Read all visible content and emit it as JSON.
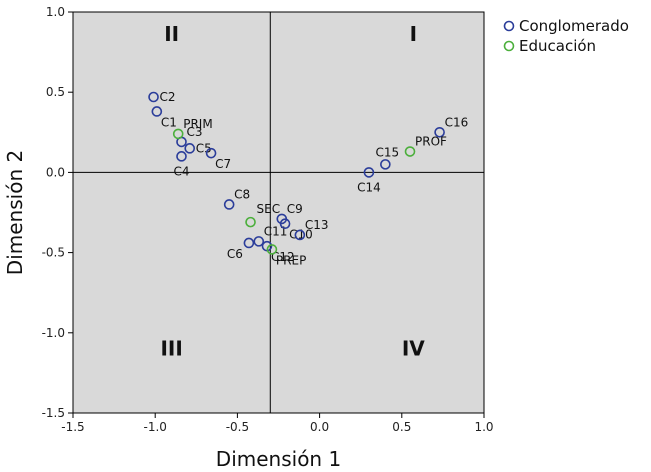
{
  "chart_data": {
    "type": "scatter",
    "xlabel": "Dimensión 1",
    "ylabel": "Dimensión 2",
    "xlim": [
      -1.5,
      1.0
    ],
    "ylim": [
      -1.5,
      1.0
    ],
    "xticks": [
      {
        "value": -1.5,
        "label": "-1.5"
      },
      {
        "value": -1.0,
        "label": "-1.0"
      },
      {
        "value": -0.5,
        "label": "-0.5"
      },
      {
        "value": 0.0,
        "label": "0.0"
      },
      {
        "value": 0.5,
        "label": "0.5"
      },
      {
        "value": 1.0,
        "label": "1.0"
      }
    ],
    "yticks": [
      {
        "value": 1.0,
        "label": "1.0"
      },
      {
        "value": 0.5,
        "label": "0.5"
      },
      {
        "value": 0.0,
        "label": "0.0"
      },
      {
        "value": -0.5,
        "label": "-0.5"
      },
      {
        "value": -1.0,
        "label": "-1.0"
      },
      {
        "value": -1.5,
        "label": "-1.5"
      }
    ],
    "reference_lines": {
      "x": -0.3,
      "y": 0.0
    },
    "quadrants": [
      {
        "label": "I",
        "x": 0.57,
        "y": 0.82
      },
      {
        "label": "II",
        "x": -0.9,
        "y": 0.82
      },
      {
        "label": "III",
        "x": -0.9,
        "y": -1.14
      },
      {
        "label": "IV",
        "x": 0.57,
        "y": -1.14
      }
    ],
    "colors": {
      "Conglomerado": "#2b3d9a",
      "Educación": "#4caf3c"
    },
    "series": [
      {
        "name": "Conglomerado",
        "points": [
          {
            "label": "C2",
            "x": -1.01,
            "y": 0.47,
            "anchor": "right"
          },
          {
            "label": "C1",
            "x": -0.99,
            "y": 0.38,
            "anchor": "below-right"
          },
          {
            "label": "C3",
            "x": -0.84,
            "y": 0.19,
            "anchor": "above-right"
          },
          {
            "label": "C5",
            "x": -0.79,
            "y": 0.15,
            "anchor": "right"
          },
          {
            "label": "C4",
            "x": -0.84,
            "y": 0.1,
            "anchor": "below"
          },
          {
            "label": "C7",
            "x": -0.66,
            "y": 0.12,
            "anchor": "below-right"
          },
          {
            "label": "C8",
            "x": -0.55,
            "y": -0.2,
            "anchor": "above-right"
          },
          {
            "label": "C6",
            "x": -0.43,
            "y": -0.44,
            "anchor": "below-left"
          },
          {
            "label": "C11",
            "x": -0.37,
            "y": -0.43,
            "anchor": "above-right"
          },
          {
            "label": "C12",
            "x": -0.32,
            "y": -0.46,
            "anchor": "below-right"
          },
          {
            "label": "C9",
            "x": -0.23,
            "y": -0.29,
            "anchor": "above-right"
          },
          {
            "label": "C10",
            "x": -0.21,
            "y": -0.32,
            "anchor": "below-right"
          },
          {
            "label": "C13",
            "x": -0.12,
            "y": -0.39,
            "anchor": "above-right"
          },
          {
            "label": "C14",
            "x": 0.3,
            "y": 0.0,
            "anchor": "below"
          },
          {
            "label": "C15",
            "x": 0.4,
            "y": 0.05,
            "anchor": "above"
          },
          {
            "label": "C16",
            "x": 0.73,
            "y": 0.25,
            "anchor": "above-right"
          }
        ]
      },
      {
        "name": "Educación",
        "points": [
          {
            "label": "PRIM",
            "x": -0.86,
            "y": 0.24,
            "anchor": "above-right"
          },
          {
            "label": "SEC",
            "x": -0.42,
            "y": -0.31,
            "anchor": "above-left"
          },
          {
            "label": "PREP",
            "x": -0.29,
            "y": -0.48,
            "anchor": "below-right"
          },
          {
            "label": "PROF",
            "x": 0.55,
            "y": 0.13,
            "anchor": "above-right"
          }
        ]
      }
    ],
    "legend": {
      "position": "top-right",
      "entries": [
        "Conglomerado",
        "Educación"
      ]
    }
  }
}
